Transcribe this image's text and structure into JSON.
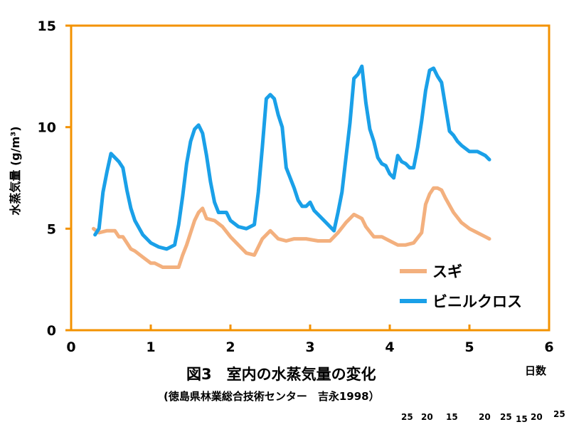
{
  "chart_data": {
    "type": "line",
    "title": "図3　室内の水蒸気量の変化",
    "source": "(徳島県林業総合技術センター　吉永1998）",
    "xlabel": "日数",
    "ylabel": "水蒸気量 (g/m³)",
    "xlim": [
      0,
      6
    ],
    "ylim": [
      0,
      15
    ],
    "xticks": [
      "0",
      "1",
      "2",
      "3",
      "4",
      "5",
      "6"
    ],
    "yticks": [
      "0",
      "5",
      "10",
      "15"
    ],
    "frame_color": "#f39200",
    "grid": false,
    "legend_position": "bottom-right",
    "series": [
      {
        "name": "スギ",
        "color": "#f3b07e",
        "x": [
          0.28,
          0.35,
          0.45,
          0.55,
          0.6,
          0.65,
          0.7,
          0.75,
          0.8,
          0.9,
          1.0,
          1.05,
          1.15,
          1.25,
          1.35,
          1.4,
          1.45,
          1.5,
          1.55,
          1.6,
          1.65,
          1.7,
          1.8,
          1.9,
          2.0,
          2.1,
          2.2,
          2.3,
          2.4,
          2.5,
          2.6,
          2.7,
          2.8,
          2.95,
          3.1,
          3.25,
          3.35,
          3.45,
          3.55,
          3.65,
          3.7,
          3.8,
          3.9,
          4.0,
          4.1,
          4.2,
          4.3,
          4.4,
          4.45,
          4.5,
          4.55,
          4.6,
          4.65,
          4.7,
          4.8,
          4.9,
          5.0,
          5.1,
          5.2,
          5.25
        ],
        "y": [
          5.0,
          4.8,
          4.9,
          4.9,
          4.6,
          4.6,
          4.3,
          4.0,
          3.9,
          3.6,
          3.3,
          3.3,
          3.1,
          3.1,
          3.1,
          3.7,
          4.2,
          4.8,
          5.4,
          5.8,
          6.0,
          5.5,
          5.4,
          5.1,
          4.6,
          4.2,
          3.8,
          3.7,
          4.5,
          4.9,
          4.5,
          4.4,
          4.5,
          4.5,
          4.4,
          4.4,
          4.8,
          5.3,
          5.7,
          5.5,
          5.1,
          4.6,
          4.6,
          4.4,
          4.2,
          4.2,
          4.3,
          4.8,
          6.2,
          6.7,
          7.0,
          7.0,
          6.9,
          6.5,
          5.8,
          5.3,
          5.0,
          4.8,
          4.6,
          4.5
        ]
      },
      {
        "name": "ビニルクロス",
        "color": "#1aa0e8",
        "x": [
          0.3,
          0.35,
          0.4,
          0.45,
          0.5,
          0.55,
          0.6,
          0.65,
          0.7,
          0.75,
          0.8,
          0.9,
          1.0,
          1.1,
          1.2,
          1.3,
          1.35,
          1.4,
          1.45,
          1.5,
          1.55,
          1.6,
          1.65,
          1.7,
          1.75,
          1.8,
          1.85,
          1.9,
          1.95,
          2.0,
          2.1,
          2.2,
          2.25,
          2.3,
          2.35,
          2.4,
          2.45,
          2.5,
          2.55,
          2.6,
          2.65,
          2.7,
          2.75,
          2.8,
          2.85,
          2.9,
          2.95,
          3.0,
          3.05,
          3.1,
          3.2,
          3.3,
          3.35,
          3.4,
          3.45,
          3.5,
          3.55,
          3.6,
          3.65,
          3.7,
          3.75,
          3.8,
          3.85,
          3.9,
          3.95,
          4.0,
          4.05,
          4.1,
          4.15,
          4.2,
          4.25,
          4.3,
          4.35,
          4.4,
          4.45,
          4.5,
          4.55,
          4.6,
          4.65,
          4.7,
          4.75,
          4.8,
          4.85,
          4.9,
          5.0,
          5.1,
          5.2,
          5.25
        ],
        "y": [
          4.7,
          5.0,
          6.8,
          7.8,
          8.7,
          8.5,
          8.3,
          8.0,
          6.9,
          6.0,
          5.4,
          4.7,
          4.3,
          4.1,
          4.0,
          4.2,
          5.2,
          6.6,
          8.2,
          9.3,
          9.9,
          10.1,
          9.7,
          8.6,
          7.3,
          6.3,
          5.8,
          5.8,
          5.8,
          5.4,
          5.1,
          5.0,
          5.1,
          5.2,
          6.8,
          9.0,
          11.4,
          11.6,
          11.4,
          10.6,
          10.0,
          8.0,
          7.5,
          7.0,
          6.4,
          6.1,
          6.1,
          6.3,
          5.9,
          5.7,
          5.3,
          4.9,
          5.8,
          6.8,
          8.5,
          10.2,
          12.4,
          12.6,
          13.0,
          11.2,
          9.9,
          9.3,
          8.5,
          8.2,
          8.1,
          7.7,
          7.5,
          8.6,
          8.3,
          8.2,
          8.0,
          8.0,
          9.0,
          10.3,
          11.8,
          12.8,
          12.9,
          12.5,
          12.2,
          11.0,
          9.8,
          9.6,
          9.3,
          9.1,
          8.8,
          8.8,
          8.6,
          8.4
        ]
      }
    ]
  },
  "stray_numbers": [
    "25",
    "20",
    "15",
    "20",
    "25",
    "15",
    "20",
    "25"
  ]
}
